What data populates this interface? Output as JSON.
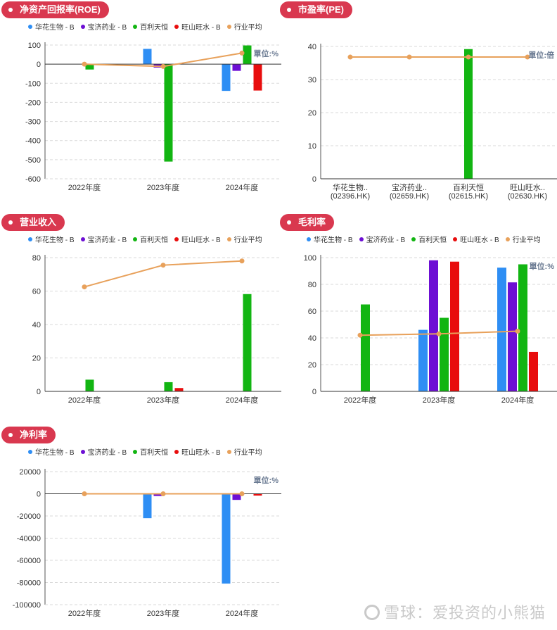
{
  "watermark": "雪球：爱投资的小熊猫",
  "colors": {
    "pill": "#d9384f",
    "series": [
      "#2e8ef4",
      "#6d0fd4",
      "#12b512",
      "#e80d0d",
      "#e8a15b"
    ]
  },
  "legend": [
    {
      "label": "华花生物 - B",
      "color": "#2e8ef4"
    },
    {
      "label": "宝济药业 - B",
      "color": "#6d0fd4"
    },
    {
      "label": "百利天恒",
      "color": "#12b512"
    },
    {
      "label": "旺山旺水 - B",
      "color": "#e80d0d"
    },
    {
      "label": "行业平均",
      "color": "#e8a15b"
    }
  ],
  "chart_data": [
    {
      "id": "roe",
      "title": "净资产回报率(ROE)",
      "type": "bar",
      "unit": "單位:%",
      "categories": [
        "2022年度",
        "2023年度",
        "2024年度"
      ],
      "ylim": [
        -600,
        100
      ],
      "yticks": [
        100,
        0,
        -100,
        -200,
        -300,
        -400,
        -500,
        -600
      ],
      "grid": true,
      "legend": "top",
      "series": [
        {
          "name": "华花生物 - B",
          "values": [
            null,
            80,
            -140
          ]
        },
        {
          "name": "宝济药业 - B",
          "values": [
            null,
            -18,
            -35
          ]
        },
        {
          "name": "百利天恒",
          "values": [
            -28,
            -510,
            98
          ]
        },
        {
          "name": "旺山旺水 - B",
          "values": [
            null,
            3,
            -138
          ]
        }
      ],
      "line": {
        "name": "行业平均",
        "values": [
          0,
          -12,
          58
        ]
      }
    },
    {
      "id": "pe",
      "title": "市盈率(PE)",
      "type": "bar",
      "unit": "單位:倍",
      "categories": [
        "华花生物..\n(02396.HK)",
        "宝济药业..\n(02659.HK)",
        "百利天恒\n(02615.HK)",
        "旺山旺水..\n(02630.HK)"
      ],
      "ylim": [
        0,
        40
      ],
      "yticks": [
        40,
        30,
        20,
        10,
        0
      ],
      "grid": true,
      "series": [
        {
          "name": "市盈率",
          "values": [
            null,
            null,
            39.2,
            null
          ]
        }
      ],
      "line": {
        "name": "行业平均",
        "values": [
          36.8,
          36.8,
          36.8,
          36.8
        ]
      }
    },
    {
      "id": "revenue",
      "title": "营业收入",
      "type": "bar",
      "categories": [
        "2022年度",
        "2023年度",
        "2024年度"
      ],
      "ylim": [
        0,
        80
      ],
      "yticks": [
        80,
        60,
        40,
        20,
        0
      ],
      "grid": true,
      "legend": "top",
      "series": [
        {
          "name": "华花生物 - B",
          "values": [
            null,
            null,
            null
          ]
        },
        {
          "name": "宝济药业 - B",
          "values": [
            null,
            null,
            null
          ]
        },
        {
          "name": "百利天恒",
          "values": [
            7,
            5.5,
            58.2
          ]
        },
        {
          "name": "旺山旺水 - B",
          "values": [
            null,
            2,
            null
          ]
        }
      ],
      "line": {
        "name": "行业平均",
        "values": [
          62.5,
          75.5,
          78
        ]
      }
    },
    {
      "id": "gross",
      "title": "毛利率",
      "type": "bar",
      "unit": "單位:%",
      "categories": [
        "2022年度",
        "2023年度",
        "2024年度"
      ],
      "ylim": [
        0,
        100
      ],
      "yticks": [
        100,
        80,
        60,
        40,
        20,
        0
      ],
      "grid": true,
      "legend": "top",
      "series": [
        {
          "name": "华花生物 - B",
          "values": [
            null,
            46,
            92.5
          ]
        },
        {
          "name": "宝济药业 - B",
          "values": [
            null,
            98,
            81.5
          ]
        },
        {
          "name": "百利天恒",
          "values": [
            65,
            55,
            95
          ]
        },
        {
          "name": "旺山旺水 - B",
          "values": [
            null,
            97,
            29.5
          ]
        }
      ],
      "line": {
        "name": "行业平均",
        "values": [
          42,
          43,
          45
        ]
      }
    },
    {
      "id": "net",
      "title": "净利率",
      "type": "bar",
      "unit": "單位:%",
      "categories": [
        "2022年度",
        "2023年度",
        "2024年度"
      ],
      "ylim": [
        -100000,
        20000
      ],
      "yticks": [
        20000,
        0,
        -20000,
        -40000,
        -60000,
        -80000,
        -100000
      ],
      "grid": true,
      "legend": "top",
      "series": [
        {
          "name": "华花生物 - B",
          "values": [
            null,
            -22000,
            -81000
          ]
        },
        {
          "name": "宝济药业 - B",
          "values": [
            null,
            -2000,
            -5500
          ]
        },
        {
          "name": "百利天恒",
          "values": [
            null,
            null,
            null
          ]
        },
        {
          "name": "旺山旺水 - B",
          "values": [
            null,
            -400,
            -1600
          ]
        }
      ],
      "line": {
        "name": "行业平均",
        "values": [
          0,
          0,
          0
        ]
      }
    }
  ]
}
